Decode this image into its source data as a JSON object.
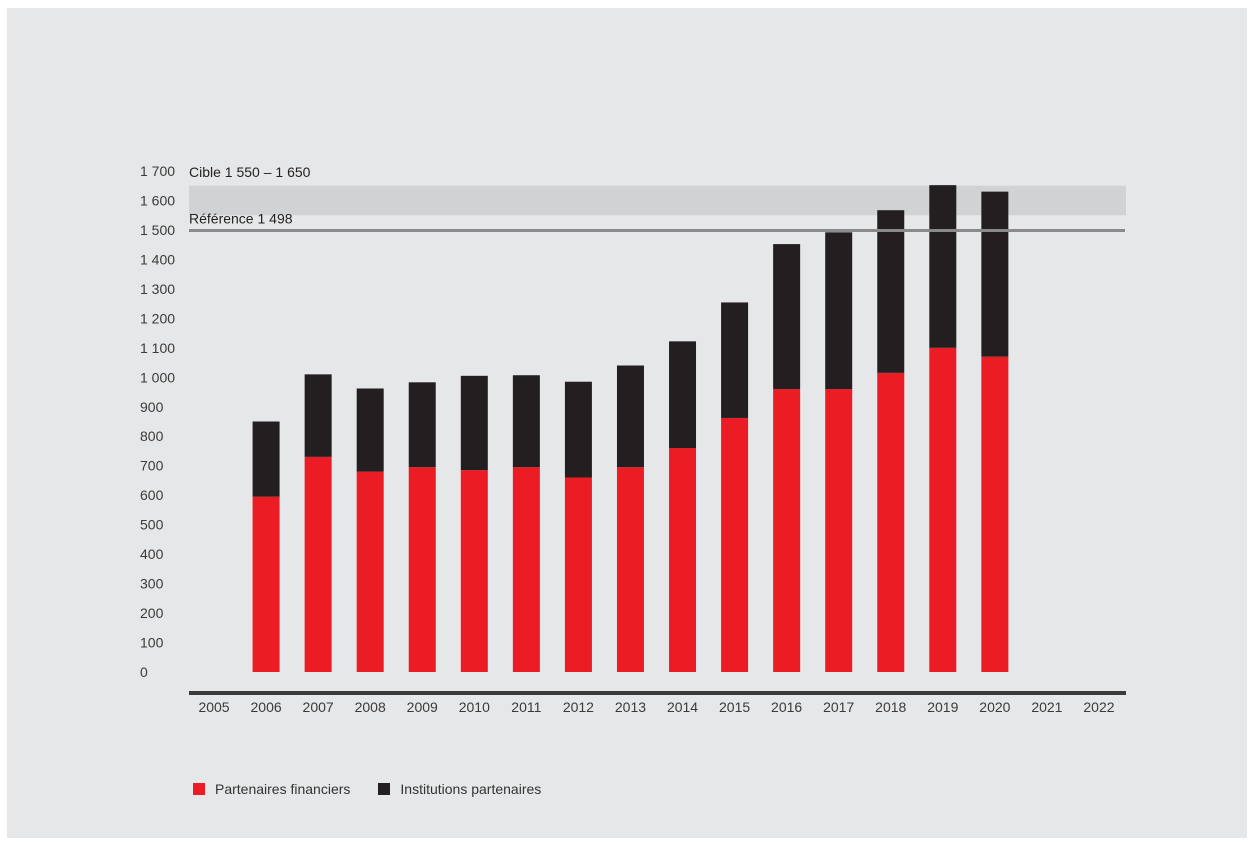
{
  "chart_data": {
    "type": "bar",
    "stacked": true,
    "categories": [
      "2005",
      "2006",
      "2007",
      "2008",
      "2009",
      "2010",
      "2011",
      "2012",
      "2013",
      "2014",
      "2015",
      "2016",
      "2017",
      "2018",
      "2019",
      "2020",
      "2021",
      "2022"
    ],
    "series": [
      {
        "name": "Partenaires financiers",
        "color": "#ec1c24",
        "values": [
          null,
          595,
          730,
          680,
          695,
          685,
          695,
          660,
          695,
          760,
          862,
          960,
          960,
          1015,
          1100,
          1070,
          null,
          null
        ]
      },
      {
        "name": "Institutions partenaires",
        "color": "#231f20",
        "values": [
          null,
          255,
          280,
          282,
          288,
          320,
          312,
          325,
          345,
          362,
          392,
          492,
          532,
          552,
          552,
          560,
          null,
          null
        ]
      }
    ],
    "ylim": [
      0,
      1700
    ],
    "yticks": [
      {
        "value": 0,
        "label": "0"
      },
      {
        "value": 100,
        "label": "100"
      },
      {
        "value": 200,
        "label": "200"
      },
      {
        "value": 300,
        "label": "300"
      },
      {
        "value": 400,
        "label": "400"
      },
      {
        "value": 500,
        "label": "500"
      },
      {
        "value": 600,
        "label": "600"
      },
      {
        "value": 700,
        "label": "700"
      },
      {
        "value": 800,
        "label": "800"
      },
      {
        "value": 900,
        "label": "900"
      },
      {
        "value": 1000,
        "label": "1 000"
      },
      {
        "value": 1100,
        "label": "1 100"
      },
      {
        "value": 1200,
        "label": "1 200"
      },
      {
        "value": 1300,
        "label": "1 300"
      },
      {
        "value": 1400,
        "label": "1 400"
      },
      {
        "value": 1500,
        "label": "1 500"
      },
      {
        "value": 1600,
        "label": "1 600"
      },
      {
        "value": 1700,
        "label": "1 700"
      }
    ],
    "target_band": {
      "label": "Cible 1 550 – 1 650",
      "from": 1550,
      "to": 1650,
      "color": "#d1d2d4"
    },
    "reference_line": {
      "label": "Référence 1 498",
      "value": 1498,
      "color": "#8a8a8a"
    },
    "grid": false,
    "legend_position": "bottom-left"
  },
  "legend": [
    {
      "label": "Partenaires financiers",
      "color": "#ec1c24"
    },
    {
      "label": "Institutions partenaires",
      "color": "#231f20"
    }
  ]
}
